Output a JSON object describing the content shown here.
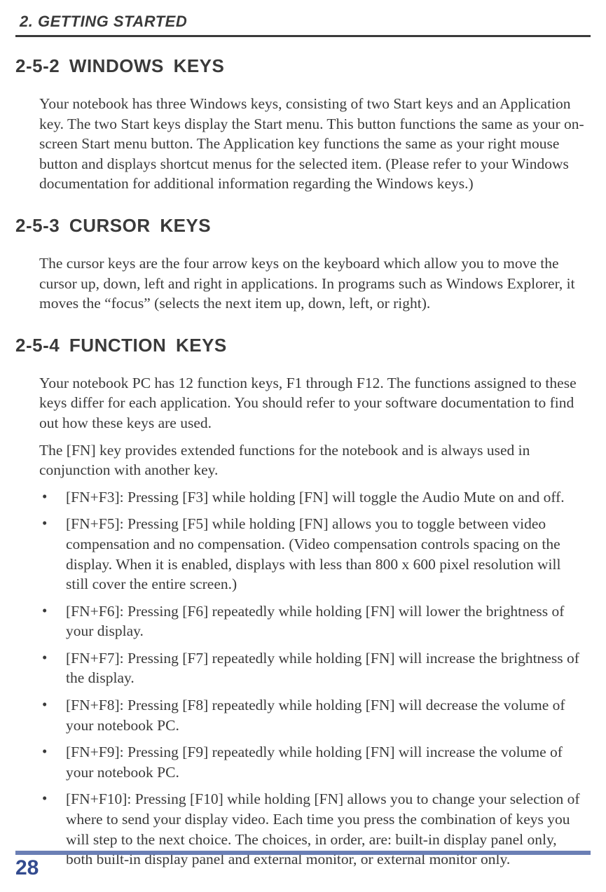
{
  "chapter_header": "2.  GETTING STARTED",
  "page_number": "28",
  "colors": {
    "text": "#3a3a3a",
    "accent_bar": "#6b7fb5",
    "page_number": "#334b8f",
    "background": "#ffffff"
  },
  "sections": {
    "s252": {
      "heading": "2-5-2  WINDOWS KEYS",
      "paragraphs": [
        "Your notebook has three Windows keys, consisting of two Start keys and an Application key. The two Start keys display the Start menu. This button functions the same as your on-screen Start menu button. The Application key functions the same as your right mouse button and displays shortcut menus for the selected item. (Please refer to your Windows documentation for additional information regarding the Windows keys.)"
      ]
    },
    "s253": {
      "heading": "2-5-3  CURSOR KEYS",
      "paragraphs": [
        "The cursor keys are the four arrow keys on the keyboard which allow you to move the cursor up, down, left and right in applications. In programs such as Windows Explorer, it moves the “focus” (selects the next item up, down, left, or right)."
      ]
    },
    "s254": {
      "heading": "2-5-4  FUNCTION KEYS",
      "paragraphs": [
        "Your notebook PC has 12 function keys, F1 through F12. The functions assigned to these keys differ for each application. You should refer to your software documentation to find out how these keys are used.",
        "The [FN] key provides extended functions for the notebook and is always used in conjunction with another key."
      ],
      "items": [
        "[FN+F3]: Pressing [F3] while holding [FN] will toggle the Audio Mute on and off.",
        "[FN+F5]: Pressing [F5] while holding [FN] allows you to toggle between video compensation and no compensation. (Video compensation controls spacing on the display. When it is enabled, displays with less than 800 x 600 pixel resolution will still cover the entire screen.)",
        "[FN+F6]: Pressing [F6] repeatedly while holding [FN] will lower the brightness of your display.",
        "[FN+F7]: Pressing [F7] repeatedly while holding [FN] will increase the brightness of the display.",
        "[FN+F8]: Pressing [F8] repeatedly while holding [FN] will decrease the volume of your notebook PC.",
        "[FN+F9]: Pressing [F9] repeatedly while holding [FN] will increase the volume of your notebook PC.",
        "[FN+F10]: Pressing [F10] while holding [FN] allows you to change your selection of where to send your display video. Each time you press the combination of keys you will step to the next choice. The choices, in order, are: built-in display panel only, both built-in display panel and external monitor, or external monitor only."
      ]
    }
  }
}
